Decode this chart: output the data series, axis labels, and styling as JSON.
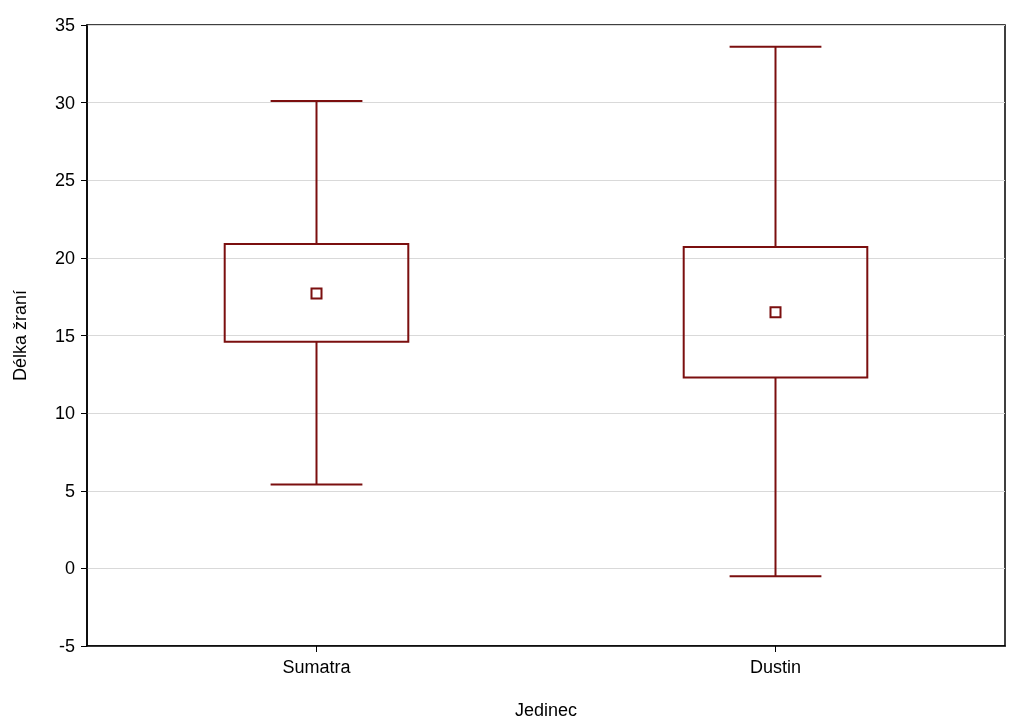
{
  "chart_data": {
    "type": "box",
    "xlabel": "Jedinec",
    "ylabel": "Délka žraní",
    "categories": [
      "Sumatra",
      "Dustin"
    ],
    "boxes": [
      {
        "low": 5.4,
        "q1": 14.6,
        "median": 17.7,
        "q3": 20.9,
        "high": 30.1
      },
      {
        "low": -0.5,
        "q1": 12.3,
        "median": 16.5,
        "q3": 20.7,
        "high": 33.6
      }
    ],
    "color": "#7b0f0f",
    "ylim": [
      -5,
      35
    ],
    "yticks": [
      -5,
      0,
      5,
      10,
      15,
      20,
      25,
      30,
      35
    ],
    "grid": "y"
  }
}
